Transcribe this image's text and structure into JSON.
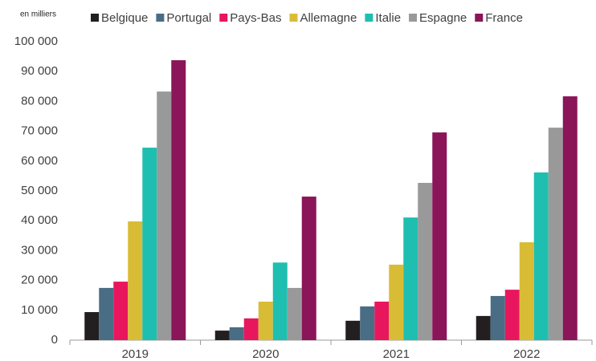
{
  "chart_data": {
    "type": "bar",
    "y_label": "en milliers",
    "categories": [
      "2019",
      "2020",
      "2021",
      "2022"
    ],
    "series": [
      {
        "name": "Belgique",
        "color": "#231f20",
        "values": [
          9400,
          3200,
          6500,
          8100
        ]
      },
      {
        "name": "Portugal",
        "color": "#4a6d86",
        "values": [
          17500,
          4300,
          11300,
          14800
        ]
      },
      {
        "name": "Pays-Bas",
        "color": "#e8175d",
        "values": [
          19600,
          7300,
          12900,
          16900
        ]
      },
      {
        "name": "Allemagne",
        "color": "#d9bc36",
        "values": [
          39800,
          12900,
          25300,
          32800
        ]
      },
      {
        "name": "Italie",
        "color": "#1ebfb0",
        "values": [
          64500,
          26000,
          41100,
          56200
        ]
      },
      {
        "name": "Espagne",
        "color": "#999999",
        "values": [
          83300,
          17500,
          52700,
          71200
        ]
      },
      {
        "name": "France",
        "color": "#8b1559",
        "values": [
          93800,
          48100,
          69600,
          81700
        ]
      }
    ],
    "ylim": [
      0,
      100000
    ],
    "yticks": [
      0,
      {
        "value": 10000,
        "label": "10 000"
      },
      {
        "value": 20000,
        "label": "20 000"
      },
      {
        "value": 30000,
        "label": "30 000"
      },
      {
        "value": 40000,
        "label": "40 000"
      },
      {
        "value": 50000,
        "label": "50 000"
      },
      {
        "value": 60000,
        "label": "60 000"
      },
      {
        "value": 70000,
        "label": "70 000"
      },
      {
        "value": 80000,
        "label": "80 000"
      },
      {
        "value": 90000,
        "label": "90 000"
      },
      {
        "value": 100000,
        "label": "100 000"
      }
    ],
    "grid": false,
    "legend": "top"
  }
}
